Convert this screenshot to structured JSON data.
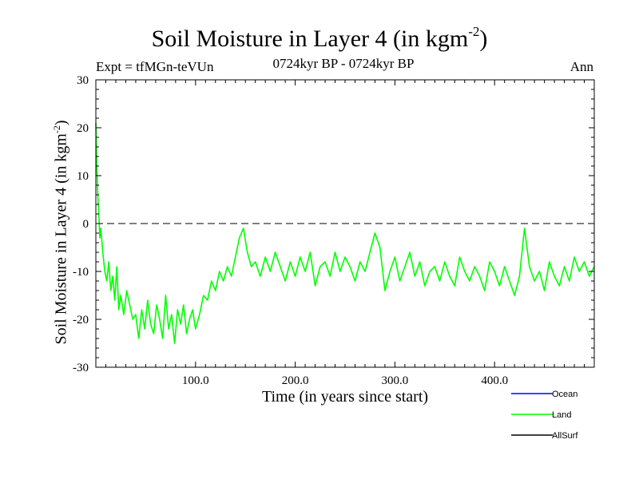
{
  "header": {
    "title_prefix": "Soil Moisture in Layer 4 (in kgm",
    "title_sup": "-2",
    "title_suffix": ")",
    "experiment": "Expt = tfMGn-teVUn",
    "period": "0724kyr BP - 0724kyr BP",
    "season": "Ann"
  },
  "axes": {
    "xlabel": "Time (in years since start)",
    "ylabel_prefix": "Soil Moisture in Layer 4 (in kgm",
    "ylabel_sup": "-2",
    "ylabel_suffix": ")"
  },
  "chart_data": {
    "type": "line",
    "xlim": [
      0,
      500
    ],
    "ylim": [
      -30,
      30
    ],
    "xticks": [
      100,
      200,
      300,
      400
    ],
    "xtick_labels": [
      "100.0",
      "200.0",
      "300.0",
      "400.0"
    ],
    "yticks": [
      -30,
      -20,
      -10,
      0,
      10,
      20,
      30
    ],
    "ytick_labels": [
      "-30",
      "-20",
      "-10",
      "0",
      "10",
      "20",
      "30"
    ],
    "reference_line": {
      "y": 0,
      "style": "dashed",
      "color": "#000000"
    },
    "legend": [
      {
        "name": "Ocean",
        "color": "#0000ff"
      },
      {
        "name": "Land",
        "color": "#00ff00"
      },
      {
        "name": "AllSurf",
        "color": "#000000"
      }
    ],
    "legend_position": "bottom-right, below plot",
    "series": [
      {
        "name": "Land",
        "color": "#00ff00",
        "x": [
          0,
          1,
          2,
          3,
          4,
          5,
          7,
          9,
          11,
          13,
          15,
          17,
          19,
          21,
          23,
          25,
          28,
          31,
          34,
          37,
          40,
          43,
          46,
          49,
          52,
          55,
          58,
          61,
          64,
          67,
          70,
          73,
          76,
          79,
          82,
          85,
          88,
          91,
          94,
          97,
          100,
          104,
          108,
          112,
          116,
          120,
          124,
          128,
          132,
          136,
          140,
          144,
          148,
          152,
          156,
          160,
          165,
          170,
          175,
          180,
          185,
          190,
          195,
          200,
          205,
          210,
          215,
          220,
          225,
          230,
          235,
          240,
          245,
          250,
          255,
          260,
          265,
          270,
          275,
          280,
          285,
          290,
          295,
          300,
          305,
          310,
          315,
          320,
          325,
          330,
          335,
          340,
          345,
          350,
          355,
          360,
          365,
          370,
          375,
          380,
          385,
          390,
          395,
          400,
          405,
          410,
          415,
          420,
          425,
          430,
          435,
          440,
          445,
          450,
          455,
          460,
          465,
          470,
          475,
          480,
          485,
          490,
          495,
          500
        ],
        "values": [
          21,
          12,
          6,
          2,
          -3,
          -1,
          -6,
          -10,
          -12,
          -8,
          -14,
          -11,
          -16,
          -9,
          -18,
          -15,
          -19,
          -14,
          -17,
          -20,
          -19,
          -24,
          -18,
          -22,
          -16,
          -21,
          -23,
          -17,
          -20,
          -24,
          -15,
          -22,
          -19,
          -25,
          -18,
          -21,
          -17,
          -23,
          -20,
          -18,
          -22,
          -19,
          -15,
          -16,
          -12,
          -14,
          -10,
          -12,
          -9,
          -11,
          -7,
          -3,
          -1,
          -6,
          -9,
          -8,
          -11,
          -7,
          -10,
          -6,
          -9,
          -12,
          -8,
          -11,
          -7,
          -10,
          -6,
          -13,
          -9,
          -8,
          -11,
          -6,
          -10,
          -7,
          -9,
          -12,
          -8,
          -10,
          -6,
          -2,
          -5,
          -14,
          -10,
          -7,
          -12,
          -9,
          -6,
          -11,
          -8,
          -13,
          -10,
          -9,
          -12,
          -8,
          -11,
          -13,
          -7,
          -10,
          -12,
          -9,
          -11,
          -14,
          -8,
          -10,
          -13,
          -9,
          -12,
          -15,
          -11,
          -1,
          -9,
          -12,
          -10,
          -14,
          -8,
          -11,
          -13,
          -9,
          -12,
          -7,
          -10,
          -8,
          -11,
          -9
        ]
      }
    ]
  }
}
